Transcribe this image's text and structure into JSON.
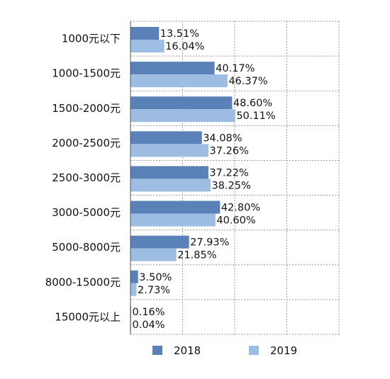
{
  "chart_data": {
    "type": "bar",
    "orientation": "horizontal",
    "title": "",
    "xlabel": "",
    "ylabel": "",
    "xlim": [
      0,
      100
    ],
    "grid": true,
    "legend_position": "bottom",
    "categories": [
      "1000元以下",
      "1000-1500元",
      "1500-2000元",
      "2000-2500元",
      "2500-3000元",
      "3000-5000元",
      "5000-8000元",
      "8000-15000元",
      "15000元以上"
    ],
    "series": [
      {
        "name": "2018",
        "color": "#5a82b8",
        "values": [
          13.51,
          40.17,
          48.6,
          34.08,
          37.22,
          42.8,
          27.93,
          3.5,
          0.16
        ],
        "labels": [
          "13.51%",
          "40.17%",
          "48.60%",
          "34.08%",
          "37.22%",
          "42.80%",
          "27.93%",
          "3.50%",
          "0.16%"
        ]
      },
      {
        "name": "2019",
        "color": "#9ebde3",
        "values": [
          16.04,
          46.37,
          50.11,
          37.26,
          38.25,
          40.6,
          21.85,
          2.73,
          0.04
        ],
        "labels": [
          "16.04%",
          "46.37%",
          "50.11%",
          "37.26%",
          "38.25%",
          "40.60%",
          "21.85%",
          "2.73%",
          "0.04%"
        ]
      }
    ]
  }
}
